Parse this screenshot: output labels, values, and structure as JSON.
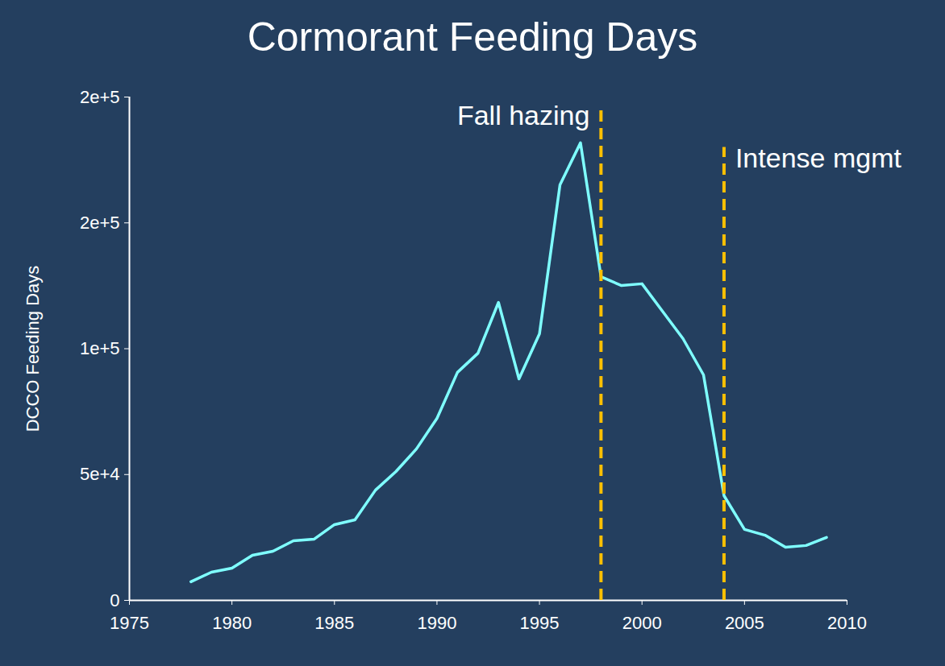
{
  "chart_data": {
    "type": "line",
    "title": "Cormorant Feeding Days",
    "ylabel": "DCCO Feeding Days",
    "x": [
      1978,
      1979,
      1980,
      1981,
      1982,
      1983,
      1984,
      1985,
      1986,
      1987,
      1988,
      1989,
      1990,
      1991,
      1992,
      1993,
      1994,
      1995,
      1996,
      1997,
      1998,
      1999,
      2000,
      2001,
      2002,
      2003,
      2004,
      2005,
      2006,
      2007,
      2008,
      2009
    ],
    "values": [
      7400,
      11200,
      12800,
      17900,
      19500,
      23700,
      24300,
      30100,
      32000,
      43800,
      51200,
      60200,
      72300,
      90600,
      98200,
      118400,
      88000,
      105900,
      165100,
      181800,
      128600,
      125100,
      125800,
      114900,
      104000,
      89600,
      41600,
      28200,
      25900,
      21100,
      21800,
      25000
    ],
    "color": "#7fffff",
    "xlim": [
      1975,
      2010
    ],
    "xticks": [
      1975,
      1980,
      1985,
      1990,
      1995,
      2000,
      2005,
      2010
    ],
    "ylim": [
      0,
      200000
    ],
    "yticks": [
      0,
      {
        "value": 50000,
        "label": "5e+4"
      },
      {
        "value": 100000,
        "label": "1e+5"
      },
      {
        "value": 150000,
        "label": "2e+5"
      },
      {
        "value": 200000,
        "label": "2e+5"
      }
    ],
    "grid": false,
    "annotations": [
      {
        "text": "Fall hazing",
        "x": 1998,
        "y": 197000,
        "color": "#ffc000",
        "line_style": "dashed"
      },
      {
        "text": "Intense mgmt",
        "x": 2004,
        "y": 180000,
        "color": "#ffc000",
        "line_style": "dashed"
      }
    ]
  }
}
